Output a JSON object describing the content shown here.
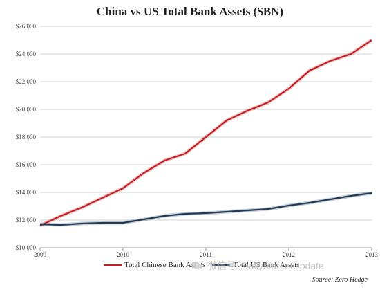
{
  "watermark": {
    "text": "微信号: DailyMarketUpdate",
    "icon": "wechat-icon"
  },
  "source": "Source: Zero Hedge",
  "colors": {
    "china": "#c21f24",
    "us": "#1f3b57",
    "grid": "#d0d0d0"
  },
  "chart_data": {
    "type": "line",
    "title": "China vs US Total Bank Assets ($BN)",
    "xlabel": "",
    "ylabel": "",
    "xlim": [
      2009.0,
      2013.0
    ],
    "ylim": [
      10000,
      26000
    ],
    "yticks": [
      10000,
      12000,
      14000,
      16000,
      18000,
      20000,
      22000,
      24000,
      26000
    ],
    "ytick_labels": [
      "$10,000",
      "$12,000",
      "$14,000",
      "$16,000",
      "$18,000",
      "$20,000",
      "$22,000",
      "$24,000",
      "$26,000"
    ],
    "xticks": [
      2009,
      2010,
      2011,
      2012,
      2013
    ],
    "xtick_labels": [
      "2009",
      "2010",
      "2011",
      "2012",
      "2013"
    ],
    "grid": "horizontal",
    "legend_position": "bottom",
    "series": [
      {
        "name": "Total Chinese Bank Assets",
        "color": "#c21f24",
        "x": [
          2009.0,
          2009.25,
          2009.5,
          2009.75,
          2010.0,
          2010.25,
          2010.5,
          2010.75,
          2011.0,
          2011.25,
          2011.5,
          2011.75,
          2012.0,
          2012.25,
          2012.5,
          2012.75,
          2013.0
        ],
        "y": [
          11600,
          12300,
          12900,
          13600,
          14300,
          15400,
          16300,
          16800,
          18000,
          19200,
          19900,
          20500,
          21500,
          22800,
          23500,
          24000,
          25000
        ]
      },
      {
        "name": "Total US Bank Assets",
        "color": "#1f3b57",
        "x": [
          2009.0,
          2009.25,
          2009.5,
          2009.75,
          2010.0,
          2010.25,
          2010.5,
          2010.75,
          2011.0,
          2011.25,
          2011.5,
          2011.75,
          2012.0,
          2012.25,
          2012.5,
          2012.75,
          2013.0
        ],
        "y": [
          11700,
          11650,
          11750,
          11800,
          11800,
          12050,
          12300,
          12450,
          12500,
          12600,
          12700,
          12800,
          13050,
          13250,
          13500,
          13750,
          13950
        ]
      }
    ]
  }
}
